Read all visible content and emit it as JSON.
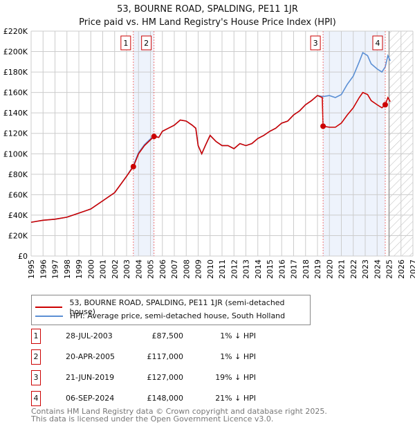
{
  "chart_data": {
    "type": "line",
    "title": "53, BOURNE ROAD, SPALDING, PE11 1JR",
    "subtitle": "Price paid vs. HM Land Registry's House Price Index (HPI)",
    "xlim": [
      1995,
      2027
    ],
    "ylim": [
      0,
      220000
    ],
    "x_ticks": [
      "1995",
      "1996",
      "1997",
      "1998",
      "1999",
      "2000",
      "2001",
      "2002",
      "2003",
      "2004",
      "2005",
      "2006",
      "2007",
      "2008",
      "2009",
      "2010",
      "2011",
      "2012",
      "2013",
      "2014",
      "2015",
      "2016",
      "2017",
      "2018",
      "2019",
      "2020",
      "2021",
      "2022",
      "2023",
      "2024",
      "2025",
      "2026",
      "2027"
    ],
    "y_ticks": [
      "£0",
      "£20K",
      "£40K",
      "£60K",
      "£80K",
      "£100K",
      "£120K",
      "£140K",
      "£160K",
      "£180K",
      "£200K",
      "£220K"
    ],
    "grid": true,
    "series": [
      {
        "name": "53, BOURNE ROAD, SPALDING, PE11 1JR (semi-detached house)",
        "color": "#cc0000",
        "points": [
          [
            1995,
            33
          ],
          [
            1995.5,
            34
          ],
          [
            1996,
            35
          ],
          [
            1997,
            36
          ],
          [
            1998,
            38
          ],
          [
            1999,
            42
          ],
          [
            2000,
            46
          ],
          [
            2001,
            54
          ],
          [
            2002,
            62
          ],
          [
            2002.5,
            70
          ],
          [
            2003,
            78
          ],
          [
            2003.57,
            87.5
          ],
          [
            2004,
            100
          ],
          [
            2004.5,
            108
          ],
          [
            2005.3,
            117
          ],
          [
            2005.7,
            116
          ],
          [
            2006,
            122
          ],
          [
            2006.5,
            125
          ],
          [
            2007,
            128
          ],
          [
            2007.5,
            133
          ],
          [
            2008,
            132
          ],
          [
            2008.5,
            128
          ],
          [
            2008.8,
            125
          ],
          [
            2009,
            108
          ],
          [
            2009.3,
            100
          ],
          [
            2009.6,
            108
          ],
          [
            2010,
            118
          ],
          [
            2010.5,
            112
          ],
          [
            2011,
            108
          ],
          [
            2011.5,
            108
          ],
          [
            2012,
            105
          ],
          [
            2012.5,
            110
          ],
          [
            2013,
            108
          ],
          [
            2013.5,
            110
          ],
          [
            2014,
            115
          ],
          [
            2014.5,
            118
          ],
          [
            2015,
            122
          ],
          [
            2015.5,
            125
          ],
          [
            2016,
            130
          ],
          [
            2016.5,
            132
          ],
          [
            2017,
            138
          ],
          [
            2017.5,
            142
          ],
          [
            2018,
            148
          ],
          [
            2018.5,
            152
          ],
          [
            2019,
            157
          ],
          [
            2019.4,
            155
          ],
          [
            2019.47,
            127
          ],
          [
            2020,
            126
          ],
          [
            2020.5,
            126
          ],
          [
            2021,
            130
          ],
          [
            2021.5,
            138
          ],
          [
            2022,
            145
          ],
          [
            2022.5,
            155
          ],
          [
            2022.8,
            160
          ],
          [
            2023.2,
            158
          ],
          [
            2023.5,
            152
          ],
          [
            2024,
            148
          ],
          [
            2024.4,
            145
          ],
          [
            2024.68,
            148
          ],
          [
            2024.9,
            155
          ],
          [
            2025.1,
            151
          ]
        ]
      },
      {
        "name": "HPI: Average price, semi-detached house, South Holland",
        "color": "#5b8fd4",
        "points": [
          [
            1995,
            33
          ],
          [
            1995.5,
            34
          ],
          [
            1996,
            35
          ],
          [
            1997,
            36
          ],
          [
            1998,
            38
          ],
          [
            1999,
            42
          ],
          [
            2000,
            46
          ],
          [
            2001,
            54
          ],
          [
            2002,
            62
          ],
          [
            2002.5,
            70
          ],
          [
            2003,
            78
          ],
          [
            2003.57,
            88.5
          ],
          [
            2004,
            101
          ],
          [
            2004.5,
            109
          ],
          [
            2005.3,
            118
          ],
          [
            2005.7,
            116
          ],
          [
            2006,
            122
          ],
          [
            2006.5,
            125
          ],
          [
            2007,
            128
          ],
          [
            2007.5,
            133
          ],
          [
            2008,
            132
          ],
          [
            2008.5,
            128
          ],
          [
            2008.8,
            125
          ],
          [
            2009,
            108
          ],
          [
            2009.3,
            100
          ],
          [
            2009.6,
            108
          ],
          [
            2010,
            118
          ],
          [
            2010.5,
            112
          ],
          [
            2011,
            108
          ],
          [
            2011.5,
            108
          ],
          [
            2012,
            105
          ],
          [
            2012.5,
            110
          ],
          [
            2013,
            108
          ],
          [
            2013.5,
            110
          ],
          [
            2014,
            115
          ],
          [
            2014.5,
            118
          ],
          [
            2015,
            122
          ],
          [
            2015.5,
            125
          ],
          [
            2016,
            130
          ],
          [
            2016.5,
            132
          ],
          [
            2017,
            138
          ],
          [
            2017.5,
            142
          ],
          [
            2018,
            148
          ],
          [
            2018.5,
            152
          ],
          [
            2019,
            157
          ],
          [
            2019.47,
            156
          ],
          [
            2020,
            157
          ],
          [
            2020.5,
            155
          ],
          [
            2021,
            158
          ],
          [
            2021.5,
            168
          ],
          [
            2022,
            176
          ],
          [
            2022.5,
            190
          ],
          [
            2022.8,
            199
          ],
          [
            2023.2,
            196
          ],
          [
            2023.5,
            188
          ],
          [
            2024,
            183
          ],
          [
            2024.4,
            180
          ],
          [
            2024.68,
            185
          ],
          [
            2024.9,
            196
          ],
          [
            2025.1,
            191
          ]
        ]
      }
    ],
    "sales": [
      {
        "label": "1",
        "x": 2003.57,
        "value": 87.5
      },
      {
        "label": "2",
        "x": 2005.3,
        "value": 117
      },
      {
        "label": "3",
        "x": 2019.47,
        "value": 127
      },
      {
        "label": "4",
        "x": 2024.68,
        "value": 148
      }
    ],
    "shaded_ranges": [
      [
        2003.57,
        2005.3
      ],
      [
        2019.47,
        2024.68
      ]
    ],
    "forecast_from": 2025.0
  },
  "table": [
    {
      "num": "1",
      "date": "28-JUL-2003",
      "price": "£87,500",
      "hpi": "1% ↓ HPI"
    },
    {
      "num": "2",
      "date": "20-APR-2005",
      "price": "£117,000",
      "hpi": "1% ↓ HPI"
    },
    {
      "num": "3",
      "date": "21-JUN-2019",
      "price": "£127,000",
      "hpi": "19% ↓ HPI"
    },
    {
      "num": "4",
      "date": "06-SEP-2024",
      "price": "£148,000",
      "hpi": "21% ↓ HPI"
    }
  ],
  "footer": {
    "line1": "Contains HM Land Registry data © Crown copyright and database right 2025.",
    "line2": "This data is licensed under the Open Government Licence v3.0."
  }
}
